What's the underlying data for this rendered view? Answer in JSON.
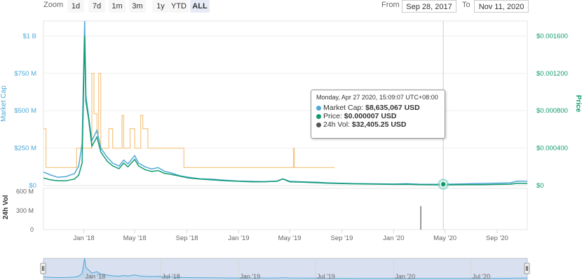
{
  "toolbar": {
    "zoom_label": "Zoom",
    "zoom_buttons": [
      "1d",
      "7d",
      "1m",
      "3m",
      "1y",
      "YTD",
      "ALL"
    ],
    "active_zoom": "ALL",
    "from_label": "From",
    "from_value": "Sep 28, 2017",
    "to_label": "To",
    "to_value": "Nov 11, 2020"
  },
  "tooltip": {
    "header": "Monday, Apr 27 2020, 15:09:07 UTC+08:00",
    "market_cap_label": "Market Cap:",
    "market_cap_value": "$8,635,067 USD",
    "price_label": "Price:",
    "price_value": "$0.000007 USD",
    "vol_label": "24h Vol:",
    "vol_value": "$32,405.25 USD"
  },
  "colors": {
    "market_cap": "#4fa8d8",
    "price": "#119a6e",
    "volume": "#555555",
    "volume_overlay": "#f5c98a"
  },
  "chart_data": {
    "type": "line",
    "x_ticks": [
      "Jan '18",
      "May '18",
      "Sep '18",
      "Jan '19",
      "May '19",
      "Sep '19",
      "Jan '20",
      "May '20",
      "Sep '20"
    ],
    "navigator_ticks": [
      "Jan '18",
      "Jul '18",
      "Jan '19",
      "Jul '19",
      "Jan '20",
      "Jul '20"
    ],
    "x_range": [
      "2017-09-28",
      "2020-11-11"
    ],
    "left_axis": {
      "label": "Market Cap",
      "ticks": [
        "$0",
        "$250 M",
        "$500 M",
        "$750 M",
        "$1 B"
      ],
      "ylim": [
        0,
        1100
      ]
    },
    "right_axis": {
      "label": "Price",
      "ticks": [
        "$0",
        "$0.000400",
        "$0.000800",
        "$0.001200",
        "$0.001600"
      ],
      "ylim": [
        0,
        0.00176
      ]
    },
    "volume_axis": {
      "label": "24h Vol",
      "ticks": [
        "0",
        "300 M",
        "600 M"
      ],
      "ylim": [
        0,
        650
      ]
    },
    "series": [
      {
        "name": "Market Cap",
        "color": "#4fa8d8",
        "points": [
          [
            "2017-09-28",
            90
          ],
          [
            "2017-10-15",
            70
          ],
          [
            "2017-11-01",
            55
          ],
          [
            "2017-11-20",
            60
          ],
          [
            "2017-12-10",
            80
          ],
          [
            "2017-12-20",
            130
          ],
          [
            "2017-12-28",
            280
          ],
          [
            "2018-01-03",
            1100
          ],
          [
            "2018-01-06",
            600
          ],
          [
            "2018-01-12",
            470
          ],
          [
            "2018-01-20",
            300
          ],
          [
            "2018-02-01",
            370
          ],
          [
            "2018-02-10",
            250
          ],
          [
            "2018-02-25",
            190
          ],
          [
            "2018-03-10",
            150
          ],
          [
            "2018-03-25",
            130
          ],
          [
            "2018-04-05",
            170
          ],
          [
            "2018-04-15",
            145
          ],
          [
            "2018-05-01",
            200
          ],
          [
            "2018-05-10",
            150
          ],
          [
            "2018-05-25",
            125
          ],
          [
            "2018-06-10",
            110
          ],
          [
            "2018-06-25",
            120
          ],
          [
            "2018-07-10",
            95
          ],
          [
            "2018-07-25",
            85
          ],
          [
            "2018-08-15",
            65
          ],
          [
            "2018-09-05",
            55
          ],
          [
            "2018-10-01",
            45
          ],
          [
            "2018-11-01",
            42
          ],
          [
            "2018-12-01",
            35
          ],
          [
            "2019-01-01",
            30
          ],
          [
            "2019-02-01",
            28
          ],
          [
            "2019-03-01",
            26
          ],
          [
            "2019-04-01",
            30
          ],
          [
            "2019-04-15",
            45
          ],
          [
            "2019-05-01",
            28
          ],
          [
            "2019-06-01",
            25
          ],
          [
            "2019-07-01",
            22
          ],
          [
            "2019-08-01",
            18
          ],
          [
            "2019-09-01",
            15
          ],
          [
            "2019-10-01",
            13
          ],
          [
            "2019-11-01",
            12
          ],
          [
            "2019-12-01",
            11
          ],
          [
            "2020-01-01",
            10
          ],
          [
            "2020-02-01",
            12
          ],
          [
            "2020-03-01",
            9
          ],
          [
            "2020-04-27",
            8.6
          ],
          [
            "2020-06-01",
            10
          ],
          [
            "2020-07-01",
            12
          ],
          [
            "2020-08-01",
            14
          ],
          [
            "2020-09-01",
            16
          ],
          [
            "2020-10-01",
            18
          ],
          [
            "2020-10-20",
            30
          ],
          [
            "2020-11-11",
            28
          ]
        ]
      },
      {
        "name": "Price",
        "color": "#119a6e",
        "points": [
          [
            "2017-09-28",
            8e-05
          ],
          [
            "2017-10-15",
            6e-05
          ],
          [
            "2017-11-01",
            5e-05
          ],
          [
            "2017-11-20",
            5e-05
          ],
          [
            "2017-12-10",
            7e-05
          ],
          [
            "2017-12-20",
            0.00011
          ],
          [
            "2017-12-28",
            0.00024
          ],
          [
            "2018-01-03",
            0.0016
          ],
          [
            "2018-01-06",
            0.0009
          ],
          [
            "2018-01-12",
            0.00072
          ],
          [
            "2018-01-20",
            0.00042
          ],
          [
            "2018-02-01",
            0.00052
          ],
          [
            "2018-02-10",
            0.00036
          ],
          [
            "2018-02-25",
            0.00026
          ],
          [
            "2018-03-10",
            0.00021
          ],
          [
            "2018-03-25",
            0.00018
          ],
          [
            "2018-04-05",
            0.00024
          ],
          [
            "2018-04-15",
            0.0002
          ],
          [
            "2018-05-01",
            0.00028
          ],
          [
            "2018-05-10",
            0.00021
          ],
          [
            "2018-05-25",
            0.00017
          ],
          [
            "2018-06-10",
            0.00015
          ],
          [
            "2018-06-25",
            0.00016
          ],
          [
            "2018-07-10",
            0.00013
          ],
          [
            "2018-07-25",
            0.00012
          ],
          [
            "2018-08-15",
            0.0001
          ],
          [
            "2018-09-05",
            8e-05
          ],
          [
            "2018-10-01",
            7e-05
          ],
          [
            "2018-11-01",
            6e-05
          ],
          [
            "2018-12-01",
            5e-05
          ],
          [
            "2019-01-01",
            4.5e-05
          ],
          [
            "2019-02-01",
            4e-05
          ],
          [
            "2019-03-01",
            4e-05
          ],
          [
            "2019-04-01",
            4.5e-05
          ],
          [
            "2019-04-15",
            7e-05
          ],
          [
            "2019-05-01",
            4e-05
          ],
          [
            "2019-06-01",
            3.5e-05
          ],
          [
            "2019-07-01",
            3e-05
          ],
          [
            "2019-08-01",
            2.5e-05
          ],
          [
            "2019-09-01",
            2e-05
          ],
          [
            "2019-10-01",
            1.8e-05
          ],
          [
            "2019-11-01",
            1.6e-05
          ],
          [
            "2019-12-01",
            1.4e-05
          ],
          [
            "2020-01-01",
            1.2e-05
          ],
          [
            "2020-02-01",
            1.3e-05
          ],
          [
            "2020-03-01",
            9e-06
          ],
          [
            "2020-04-27",
            7e-06
          ],
          [
            "2020-06-01",
            8e-06
          ],
          [
            "2020-07-01",
            9e-06
          ],
          [
            "2020-08-01",
            1e-05
          ],
          [
            "2020-09-01",
            1.2e-05
          ],
          [
            "2020-10-01",
            1.4e-05
          ],
          [
            "2020-10-20",
            2.5e-05
          ],
          [
            "2020-11-11",
            2.2e-05
          ]
        ]
      },
      {
        "name": "24h Vol",
        "color": "#555555",
        "points": [
          [
            "2020-03-05",
            370
          ]
        ]
      },
      {
        "name": "24h Vol (overlay)",
        "color": "#f5c98a",
        "points": [
          [
            "2017-09-28",
            380
          ],
          [
            "2017-10-04",
            380
          ],
          [
            "2017-10-04",
            120
          ],
          [
            "2017-12-15",
            120
          ],
          [
            "2017-12-15",
            250
          ],
          [
            "2018-01-20",
            250
          ],
          [
            "2018-01-20",
            750
          ],
          [
            "2018-01-25",
            750
          ],
          [
            "2018-01-25",
            480
          ],
          [
            "2018-02-01",
            480
          ],
          [
            "2018-02-01",
            350
          ],
          [
            "2018-02-05",
            350
          ],
          [
            "2018-02-05",
            750
          ],
          [
            "2018-02-10",
            750
          ],
          [
            "2018-02-10",
            250
          ],
          [
            "2018-03-01",
            250
          ],
          [
            "2018-03-01",
            380
          ],
          [
            "2018-03-10",
            380
          ],
          [
            "2018-03-10",
            250
          ],
          [
            "2018-04-01",
            250
          ],
          [
            "2018-04-01",
            470
          ],
          [
            "2018-04-05",
            470
          ],
          [
            "2018-04-05",
            250
          ],
          [
            "2018-04-20",
            250
          ],
          [
            "2018-04-20",
            380
          ],
          [
            "2018-05-01",
            380
          ],
          [
            "2018-05-01",
            250
          ],
          [
            "2018-05-15",
            250
          ],
          [
            "2018-05-15",
            470
          ],
          [
            "2018-05-20",
            470
          ],
          [
            "2018-05-20",
            380
          ],
          [
            "2018-06-01",
            380
          ],
          [
            "2018-06-01",
            250
          ],
          [
            "2018-08-25",
            250
          ],
          [
            "2018-08-25",
            120
          ],
          [
            "2019-05-10",
            120
          ],
          [
            "2019-05-10",
            250
          ],
          [
            "2019-05-12",
            250
          ],
          [
            "2019-05-12",
            120
          ],
          [
            "2019-08-15",
            120
          ]
        ]
      }
    ],
    "highlight": {
      "date": "2020-04-27",
      "market_cap": 8.6,
      "price": 7e-06
    }
  }
}
